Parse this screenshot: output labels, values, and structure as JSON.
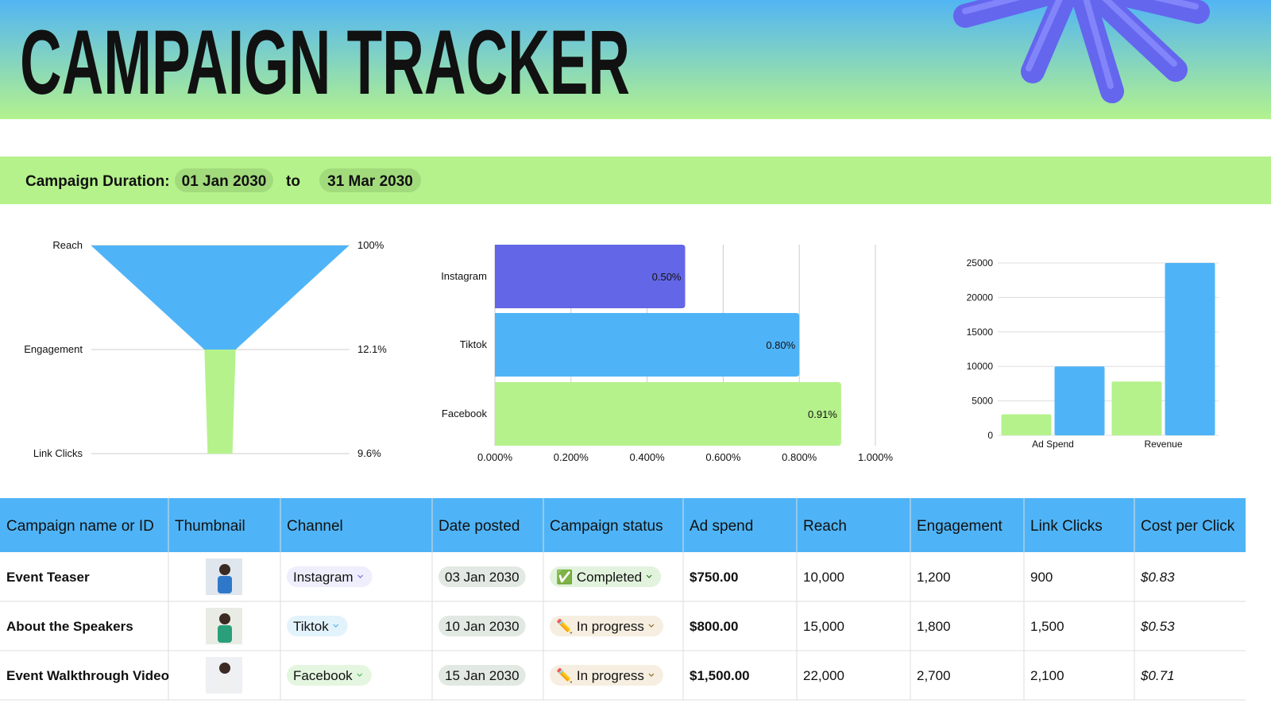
{
  "header": {
    "title": "CAMPAIGN TRACKER"
  },
  "duration": {
    "label": "Campaign Duration:",
    "start": "01 Jan 2030",
    "separator": "to",
    "end": "31 Mar 2030"
  },
  "chart_data": [
    {
      "type": "funnel",
      "categories": [
        "Reach",
        "Engagement",
        "Link Clicks"
      ],
      "values": [
        100,
        12.1,
        9.6
      ],
      "value_labels": [
        "100%",
        "12.1%",
        "9.6%"
      ],
      "colors": [
        "#4fb4f7",
        "#b5f28b"
      ]
    },
    {
      "type": "hbar",
      "categories": [
        "Instagram",
        "Tiktok",
        "Facebook"
      ],
      "values": [
        0.5,
        0.8,
        0.91
      ],
      "value_labels": [
        "0.50%",
        "0.80%",
        "0.91%"
      ],
      "colors": [
        "#6366e6",
        "#4fb4f7",
        "#b5f28b"
      ],
      "xlim": [
        0,
        1
      ],
      "xticks": [
        {
          "value": 0,
          "label": "0.000%"
        },
        {
          "value": 0.2,
          "label": "0.200%"
        },
        {
          "value": 0.4,
          "label": "0.400%"
        },
        {
          "value": 0.6,
          "label": "0.600%"
        },
        {
          "value": 0.8,
          "label": "0.800%"
        },
        {
          "value": 1,
          "label": "1.000%"
        }
      ],
      "grid": true
    },
    {
      "type": "bar",
      "categories": [
        "Ad Spend",
        "Revenue"
      ],
      "series": [
        {
          "color": "#b5f28b",
          "values": [
            3050,
            7800
          ]
        },
        {
          "color": "#4fb4f7",
          "values": [
            10000,
            25000
          ]
        }
      ],
      "ylim": [
        0,
        25000
      ],
      "yticks": [
        0,
        5000,
        10000,
        15000,
        20000,
        25000
      ],
      "grid": true
    }
  ],
  "table": {
    "columns": [
      "Campaign name or ID",
      "Thumbnail",
      "Channel",
      "Date posted",
      "Campaign status",
      "Ad spend",
      "Reach",
      "Engagement",
      "Link Clicks",
      "Cost per Click"
    ],
    "rows": [
      [
        "Event Teaser",
        "Instagram",
        "03 Jan 2030",
        "✅ Completed",
        "$750.00",
        "10,000",
        "1,200",
        "900",
        "$0.83"
      ],
      [
        "About the Speakers",
        "Tiktok",
        "10 Jan 2030",
        "✏️ In progress",
        "$800.00",
        "15,000",
        "1,800",
        "1,500",
        "$0.53"
      ],
      [
        "Event Walkthrough Video",
        "Facebook",
        "15 Jan 2030",
        "✏️ In progress",
        "$1,500.00",
        "22,000",
        "2,700",
        "2,100",
        "$0.71"
      ]
    ]
  }
}
